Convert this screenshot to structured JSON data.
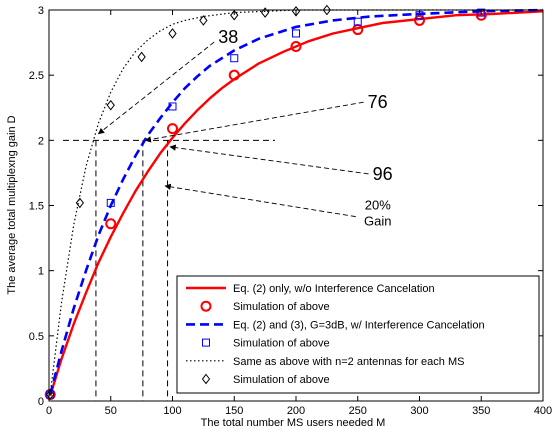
{
  "chart_data": {
    "type": "line",
    "xlabel": "The total number MS users needed M",
    "ylabel": "The average total multiplexng gain D",
    "xlim": [
      0,
      400
    ],
    "ylim": [
      0,
      3
    ],
    "xticks": [
      0,
      50,
      100,
      150,
      200,
      250,
      300,
      350,
      400
    ],
    "yticks": [
      0,
      0.5,
      1,
      1.5,
      2,
      2.5,
      3
    ],
    "xtick_labels": [
      "0",
      "50",
      "100",
      "150",
      "200",
      "250",
      "300",
      "350",
      "400"
    ],
    "ytick_labels": [
      "0",
      "0.5",
      "1",
      "1.5",
      "2",
      "2.5",
      "3"
    ],
    "grid": false,
    "legend_placement": "bottom-right",
    "series": [
      {
        "name": "Eq. (2) only, w/o Interference Cancelation",
        "style": "solid-line",
        "color": "#ff0000",
        "x": [
          1,
          10,
          20,
          30,
          40,
          50,
          60,
          70,
          80,
          90,
          100,
          110,
          120,
          130,
          140,
          150,
          170,
          190,
          210,
          230,
          250,
          270,
          300,
          330,
          360,
          400
        ],
        "y": [
          0.04,
          0.32,
          0.59,
          0.83,
          1.06,
          1.26,
          1.44,
          1.61,
          1.76,
          1.9,
          2.02,
          2.13,
          2.23,
          2.32,
          2.4,
          2.47,
          2.59,
          2.68,
          2.76,
          2.82,
          2.86,
          2.9,
          2.93,
          2.96,
          2.97,
          2.99
        ]
      },
      {
        "name": "Simulation of above",
        "style": "circle-marker",
        "color": "#ff0000",
        "x": [
          1,
          50,
          100,
          150,
          200,
          250,
          300,
          350
        ],
        "y": [
          0.05,
          1.36,
          2.09,
          2.5,
          2.72,
          2.85,
          2.92,
          2.96
        ]
      },
      {
        "name": "Eq. (2) and (3), G=3dB, w/ Interference Cancelation",
        "style": "dashed-line",
        "color": "#0000ff",
        "x": [
          1,
          10,
          20,
          30,
          40,
          50,
          60,
          70,
          80,
          90,
          100,
          110,
          120,
          130,
          150,
          170,
          200,
          230,
          260,
          300,
          350,
          400
        ],
        "y": [
          0.05,
          0.38,
          0.71,
          1.0,
          1.27,
          1.5,
          1.7,
          1.88,
          2.04,
          2.17,
          2.29,
          2.4,
          2.49,
          2.57,
          2.69,
          2.78,
          2.87,
          2.92,
          2.95,
          2.97,
          2.99,
          3.0
        ]
      },
      {
        "name": "Simulation of above",
        "style": "square-marker",
        "color": "#0000ff",
        "x": [
          1,
          50,
          100,
          150,
          200,
          250,
          300,
          350
        ],
        "y": [
          0.05,
          1.52,
          2.26,
          2.63,
          2.82,
          2.91,
          2.96,
          2.98
        ]
      },
      {
        "name": "Same as above with n=2 antennas for each MS",
        "style": "dotted-line",
        "color": "#000000",
        "x": [
          1,
          10,
          20,
          30,
          40,
          50,
          60,
          70,
          80,
          90,
          100,
          110,
          125,
          150,
          175,
          200,
          225,
          250,
          300,
          400
        ],
        "y": [
          0.05,
          0.75,
          1.35,
          1.8,
          2.13,
          2.37,
          2.55,
          2.68,
          2.77,
          2.84,
          2.89,
          2.92,
          2.95,
          2.98,
          2.99,
          3.0,
          3.0,
          3.0,
          3.0,
          3.0
        ]
      },
      {
        "name": "Simulation of above",
        "style": "diamond-marker",
        "color": "#000000",
        "x": [
          1,
          25,
          50,
          75,
          100,
          125,
          150,
          175,
          200,
          225
        ],
        "y": [
          0.05,
          1.52,
          2.27,
          2.64,
          2.82,
          2.92,
          2.96,
          2.98,
          2.99,
          3.0
        ]
      }
    ],
    "reference_lines": [
      {
        "x": 38,
        "y": 2
      },
      {
        "x": 76,
        "y": 2
      },
      {
        "x": 96,
        "y": 2
      }
    ],
    "annotations": [
      {
        "text": "38",
        "x": 137,
        "y": 2.8,
        "arrow_to": [
          40,
          2.05
        ]
      },
      {
        "text": "76",
        "x": 258,
        "y": 2.3,
        "arrow_to": [
          78,
          2.0
        ]
      },
      {
        "text": "96",
        "x": 262,
        "y": 1.75,
        "arrow_to": [
          98,
          1.95
        ]
      },
      {
        "text": "20%",
        "lines": [
          "20%",
          "Gain"
        ],
        "x": 250,
        "y": 1.43,
        "arrow_to": [
          94,
          1.65
        ]
      }
    ],
    "colors": {
      "red": "#ff0000",
      "blue": "#0000ff",
      "black": "#000000"
    }
  }
}
